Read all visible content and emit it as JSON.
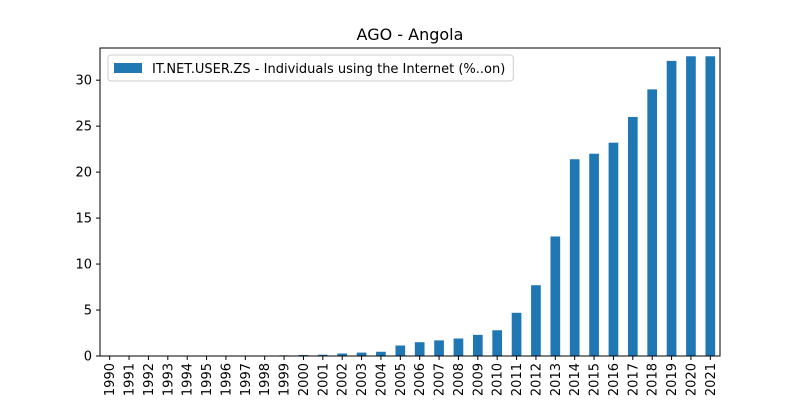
{
  "chart_data": {
    "type": "bar",
    "title": "AGO - Angola",
    "xlabel": "",
    "ylabel": "",
    "categories": [
      "1990",
      "1991",
      "1992",
      "1993",
      "1994",
      "1995",
      "1996",
      "1997",
      "1998",
      "1999",
      "2000",
      "2001",
      "2002",
      "2003",
      "2004",
      "2005",
      "2006",
      "2007",
      "2008",
      "2009",
      "2010",
      "2011",
      "2012",
      "2013",
      "2014",
      "2015",
      "2016",
      "2017",
      "2018",
      "2019",
      "2020",
      "2021"
    ],
    "series": [
      {
        "name": "IT.NET.USER.ZS - Individuals using the Internet (%..on)",
        "color": "#1f77b4",
        "values": [
          0,
          0,
          0,
          0,
          0,
          0,
          0.01,
          0.01,
          0.05,
          0.07,
          0.11,
          0.14,
          0.27,
          0.37,
          0.46,
          1.14,
          1.5,
          1.7,
          1.9,
          2.3,
          2.8,
          4.7,
          7.7,
          13.0,
          21.4,
          22.0,
          23.2,
          26.0,
          29.0,
          32.1,
          32.6,
          32.6
        ]
      }
    ],
    "ylim": [
      0,
      33.5
    ],
    "yticks": [
      0,
      5,
      10,
      15,
      20,
      25,
      30
    ],
    "grid": false,
    "legend_position": "top-left"
  }
}
